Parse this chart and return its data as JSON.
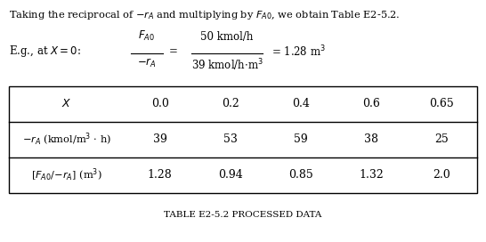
{
  "col_headers": [
    "X",
    "0.0",
    "0.2",
    "0.4",
    "0.6",
    "0.65"
  ],
  "row1_label": "-r_A (kmol/m^3 h)",
  "row1_values": [
    "39",
    "53",
    "59",
    "38",
    "25"
  ],
  "row2_label": "[F_A0/-r_A] (m^3)",
  "row2_values": [
    "1.28",
    "0.94",
    "0.85",
    "1.32",
    "2.0"
  ],
  "table_caption": "TABLE E2-5.2 PROCESSED DATA",
  "bg_color": "#ffffff",
  "text_color": "#000000",
  "table_line_color": "#000000"
}
